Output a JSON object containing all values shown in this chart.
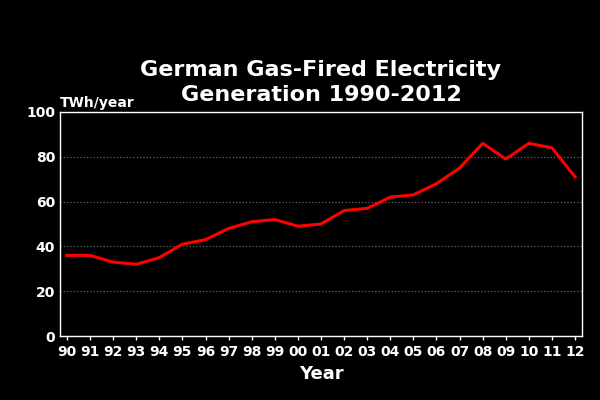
{
  "title": "German Gas-Fired Electricity\nGeneration 1990-2012",
  "xlabel": "Year",
  "ylabel": "TWh/year",
  "background_color": "#000000",
  "text_color": "#ffffff",
  "line_color": "#ff0000",
  "line_width": 2.2,
  "years": [
    1990,
    1991,
    1992,
    1993,
    1994,
    1995,
    1996,
    1997,
    1998,
    1999,
    2000,
    2001,
    2002,
    2003,
    2004,
    2005,
    2006,
    2007,
    2008,
    2009,
    2010,
    2011,
    2012
  ],
  "x_labels": [
    "90",
    "91",
    "92",
    "93",
    "94",
    "95",
    "96",
    "97",
    "98",
    "99",
    "00",
    "01",
    "02",
    "03",
    "04",
    "05",
    "06",
    "07",
    "08",
    "09",
    "10",
    "11",
    "12"
  ],
  "values": [
    36,
    36,
    33,
    32,
    35,
    41,
    43,
    48,
    51,
    52,
    49,
    50,
    56,
    57,
    62,
    63,
    68,
    75,
    86,
    79,
    86,
    84,
    71
  ],
  "ylim": [
    0,
    100
  ],
  "yticks": [
    0,
    20,
    40,
    60,
    80,
    100
  ],
  "grid_color": "#666666",
  "title_fontsize": 16,
  "axis_label_fontsize": 13,
  "tick_fontsize": 10,
  "ylabel_fontsize": 10
}
